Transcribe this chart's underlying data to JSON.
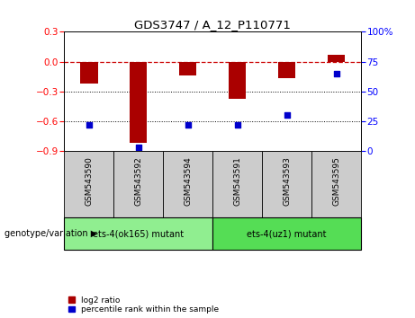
{
  "title": "GDS3747 / A_12_P110771",
  "samples": [
    "GSM543590",
    "GSM543592",
    "GSM543594",
    "GSM543591",
    "GSM543593",
    "GSM543595"
  ],
  "log2_ratio": [
    -0.22,
    -0.82,
    -0.14,
    -0.37,
    -0.17,
    0.065
  ],
  "percentile_rank": [
    22,
    3,
    22,
    22,
    30,
    65
  ],
  "ylim_left": [
    -0.9,
    0.3
  ],
  "ylim_right": [
    0,
    100
  ],
  "yticks_left": [
    -0.9,
    -0.6,
    -0.3,
    0.0,
    0.3
  ],
  "yticks_right": [
    0,
    25,
    50,
    75,
    100
  ],
  "groups": [
    {
      "label": "ets-4(ok165) mutant",
      "indices": [
        0,
        1,
        2
      ],
      "color": "#90ee90"
    },
    {
      "label": "ets-4(uz1) mutant",
      "indices": [
        3,
        4,
        5
      ],
      "color": "#55dd55"
    }
  ],
  "bar_color": "#aa0000",
  "dot_color": "#0000cc",
  "ref_line_color": "#cc0000",
  "grid_color": "#000000",
  "background_color": "#ffffff",
  "plot_bg": "#ffffff",
  "bar_width": 0.35,
  "dot_size": 18,
  "genotype_label": "genotype/variation"
}
